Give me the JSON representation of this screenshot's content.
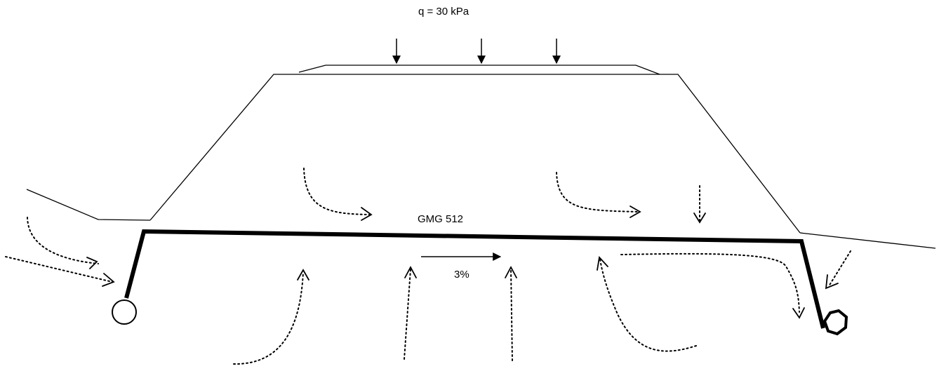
{
  "diagram": {
    "load_label": "q = 30 kPa",
    "geogrid_label": "GMG 512",
    "slope_label": "3%",
    "colors": {
      "stroke": "#000000",
      "background": "#ffffff"
    },
    "elements": {
      "load_arrows": 3,
      "flow_arrows": "dotted",
      "left_drain": "circle",
      "right_drain": "octagon"
    }
  }
}
